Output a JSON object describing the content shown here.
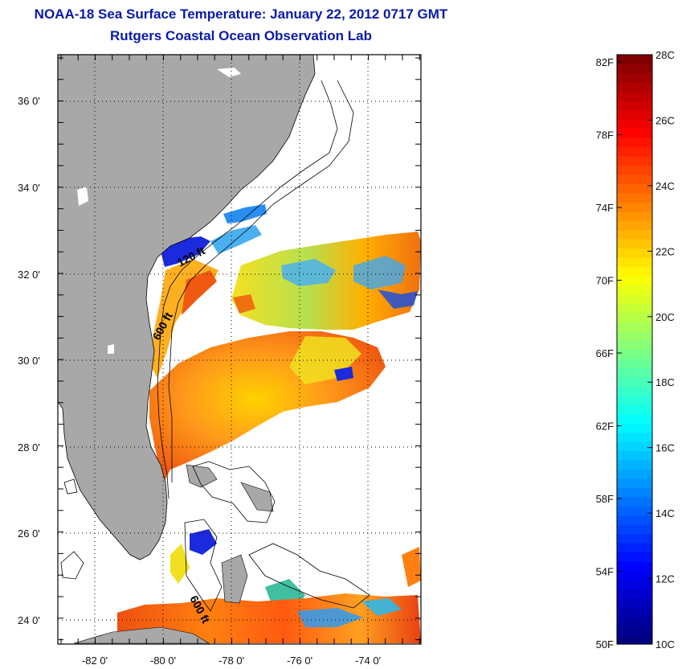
{
  "header": {
    "title": "NOAA-18 Sea Surface Temperature:  January 22, 2012 0717 GMT",
    "subtitle": "Rutgers Coastal Ocean Observation Lab"
  },
  "map": {
    "lat_ticks": [
      "36 0'",
      "34 0'",
      "32 0'",
      "30 0'",
      "28 0'",
      "26 0'",
      "24 0'"
    ],
    "lon_ticks": [
      "-82 0'",
      "-80 0'",
      "-78 0'",
      "-76 0'",
      "-74 0'"
    ],
    "isobath_labels": [
      "120 ft",
      "600 ft",
      "600 ft"
    ],
    "colors": {
      "land": "#a8a8a8",
      "cloud": "#ffffff",
      "coast": "#000000"
    }
  },
  "colorbar": {
    "fahrenheit_labels": [
      "82F",
      "78F",
      "74F",
      "70F",
      "66F",
      "62F",
      "58F",
      "54F",
      "50F"
    ],
    "celsius_labels": [
      "28C",
      "26C",
      "24C",
      "22C",
      "20C",
      "18C",
      "16C",
      "14C",
      "12C",
      "10C"
    ],
    "range_c": [
      10,
      28
    ],
    "colormap": "jet"
  }
}
